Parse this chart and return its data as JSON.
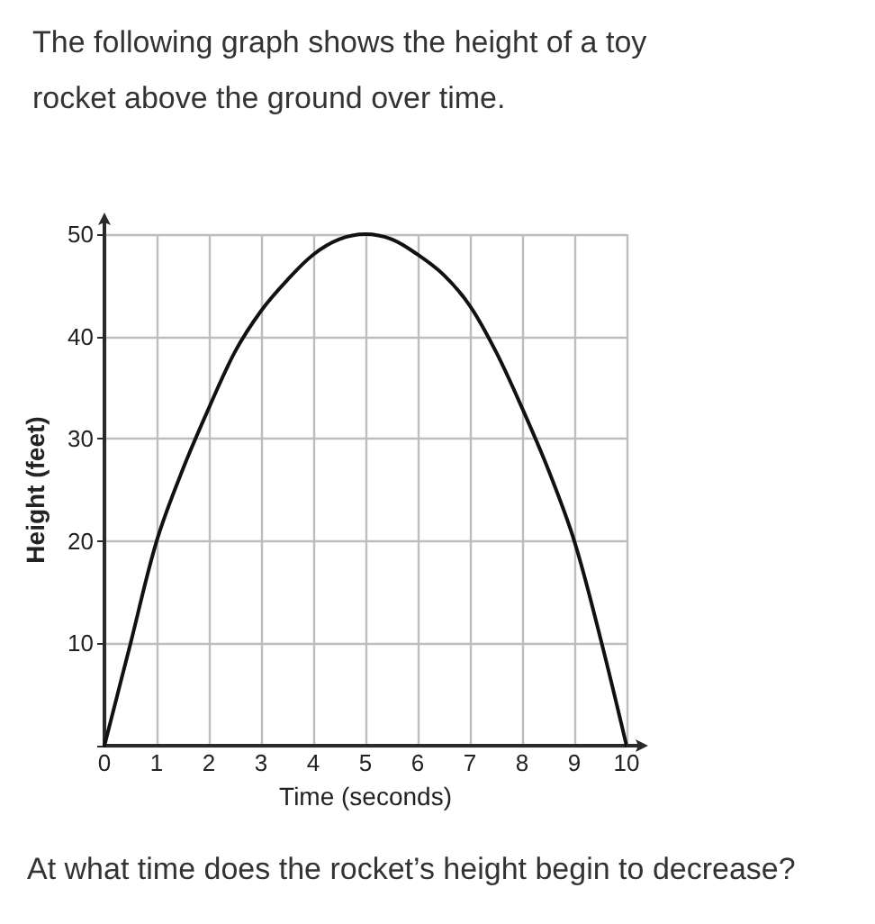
{
  "chart_data": {
    "type": "line",
    "title": "The following graph shows the height of a toy rocket above the ground over time.",
    "xlabel": "Time (seconds)",
    "ylabel": "Height (feet)",
    "annotations": [
      "At what time does the rocket’s height begin to decrease?"
    ],
    "x": [
      0,
      0.5,
      1,
      1.5,
      2,
      2.5,
      3,
      3.5,
      4,
      4.5,
      5,
      5.5,
      6,
      6.5,
      7,
      7.5,
      8,
      8.5,
      9,
      9.5,
      10
    ],
    "series": [
      {
        "color": "#111111",
        "values": [
          0,
          10,
          20,
          27,
          33,
          38.5,
          42.5,
          45.5,
          48,
          49.5,
          50,
          49.5,
          48,
          46,
          43,
          38.5,
          33,
          27,
          20,
          10.5,
          0
        ]
      }
    ],
    "xlim": [
      0,
      10
    ],
    "xticks": [
      0,
      1,
      2,
      3,
      4,
      5,
      6,
      7,
      8,
      9,
      10
    ],
    "ylim": [
      0,
      50
    ],
    "yticks": [
      {
        "value": 0,
        "label": null
      },
      10,
      20,
      30,
      40,
      50
    ],
    "grid": true,
    "marker": "none",
    "line_style": "solid"
  }
}
